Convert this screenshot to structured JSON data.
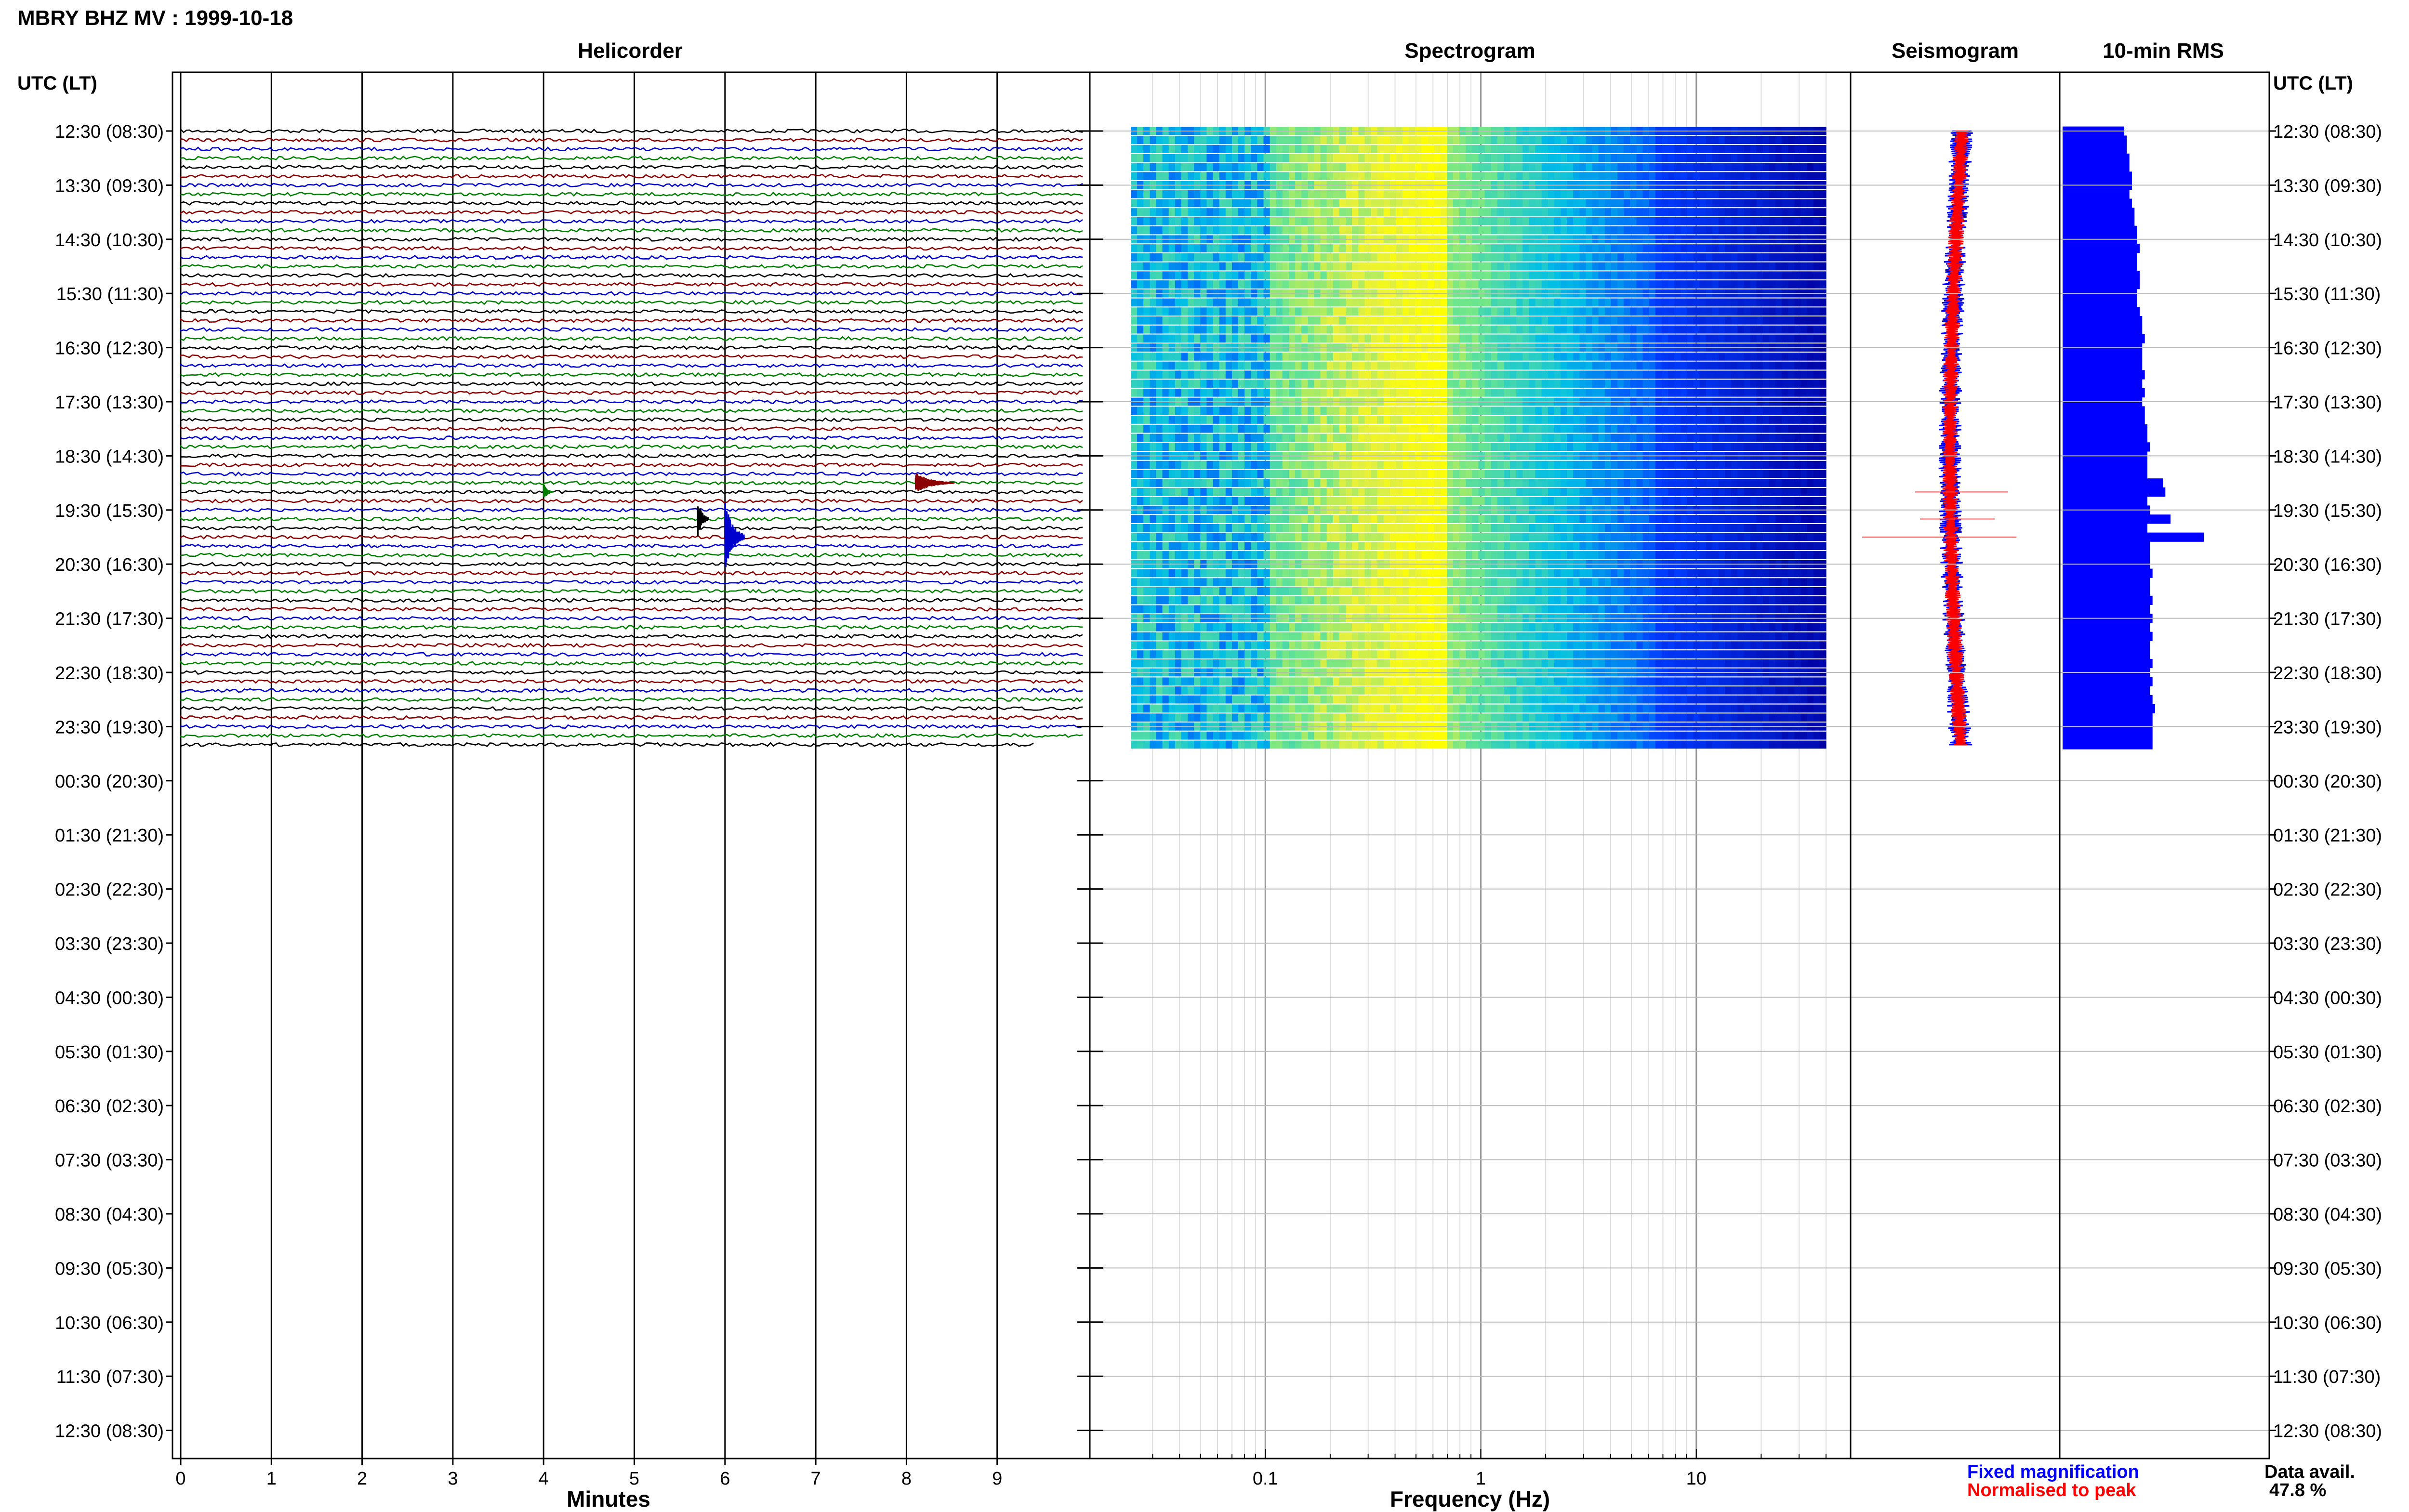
{
  "page": {
    "title": "MBRY BHZ MV : 1999-10-18",
    "time_header_left": "UTC (LT)",
    "time_header_right": "UTC (LT)"
  },
  "panels": {
    "helicorder": {
      "title": "Helicorder",
      "xlabel": "Minutes",
      "x_ticks": [
        "0",
        "1",
        "2",
        "3",
        "4",
        "5",
        "6",
        "7",
        "8",
        "9"
      ]
    },
    "spectrogram": {
      "title": "Spectrogram",
      "xlabel": "Frequency (Hz)",
      "x_tick_labels": [
        "0.1",
        "1",
        "10"
      ]
    },
    "seismogram": {
      "title": "Seismogram"
    },
    "rms": {
      "title": "10-min RMS"
    }
  },
  "time_labels": [
    "12:30 (08:30)",
    "13:30 (09:30)",
    "14:30 (10:30)",
    "15:30 (11:30)",
    "16:30 (12:30)",
    "17:30 (13:30)",
    "18:30 (14:30)",
    "19:30 (15:30)",
    "20:30 (16:30)",
    "21:30 (17:30)",
    "22:30 (18:30)",
    "23:30 (19:30)",
    "00:30 (20:30)",
    "01:30 (21:30)",
    "02:30 (22:30)",
    "03:30 (23:30)",
    "04:30 (00:30)",
    "05:30 (01:30)",
    "06:30 (02:30)",
    "07:30 (03:30)",
    "08:30 (04:30)",
    "09:30 (05:30)",
    "10:30 (06:30)",
    "11:30 (07:30)",
    "12:30 (08:30)"
  ],
  "legend": {
    "fixed": "Fixed magnification",
    "normalised": "Normalised to peak",
    "fixed_color": "#0000ff",
    "normalised_color": "#ff0000"
  },
  "availability": {
    "label": "Data avail.",
    "value": "47.8 %"
  },
  "colors": {
    "trace_cycle": [
      "#000000",
      "#8b0000",
      "#0000cc",
      "#008000"
    ]
  },
  "chart_data": {
    "type": "helicorder",
    "title": "MBRY BHZ MV : 1999-10-18",
    "trace_minutes_per_line": 10,
    "hours_with_data": 11.5,
    "data_availability_percent": 47.8,
    "events": [
      {
        "time_utc": "19:20",
        "minute": 4.0,
        "color": "#008000"
      },
      {
        "time_utc": "19:50",
        "minute": 5.7,
        "color": "#000000"
      },
      {
        "time_utc": "20:00",
        "minute": 6.0,
        "color": "#0000cc"
      },
      {
        "time_utc": "19:10",
        "minute": 8.1,
        "color": "#8b0000"
      }
    ],
    "spectrogram": {
      "xscale": "log",
      "xlim": [
        0.025,
        40
      ]
    },
    "rms_10min": [
      2.4,
      2.5,
      2.5,
      2.6,
      2.6,
      2.7,
      2.7,
      2.6,
      2.7,
      2.8,
      2.8,
      2.9,
      2.9,
      3.0,
      2.9,
      2.9,
      3.0,
      3.0,
      2.9,
      2.9,
      3.0,
      3.1,
      3.1,
      3.2,
      3.1,
      3.1,
      3.1,
      3.2,
      3.1,
      3.2,
      3.1,
      3.2,
      3.2,
      3.3,
      3.3,
      3.4,
      3.3,
      3.3,
      3.3,
      3.9,
      4.0,
      3.3,
      3.4,
      4.2,
      3.3,
      5.5,
      3.4,
      3.4,
      3.4,
      3.5,
      3.4,
      3.4,
      3.5,
      3.4,
      3.5,
      3.4,
      3.5,
      3.4,
      3.4,
      3.5,
      3.4,
      3.5,
      3.4,
      3.5,
      3.6,
      3.5,
      3.5,
      3.5,
      3.5
    ]
  }
}
